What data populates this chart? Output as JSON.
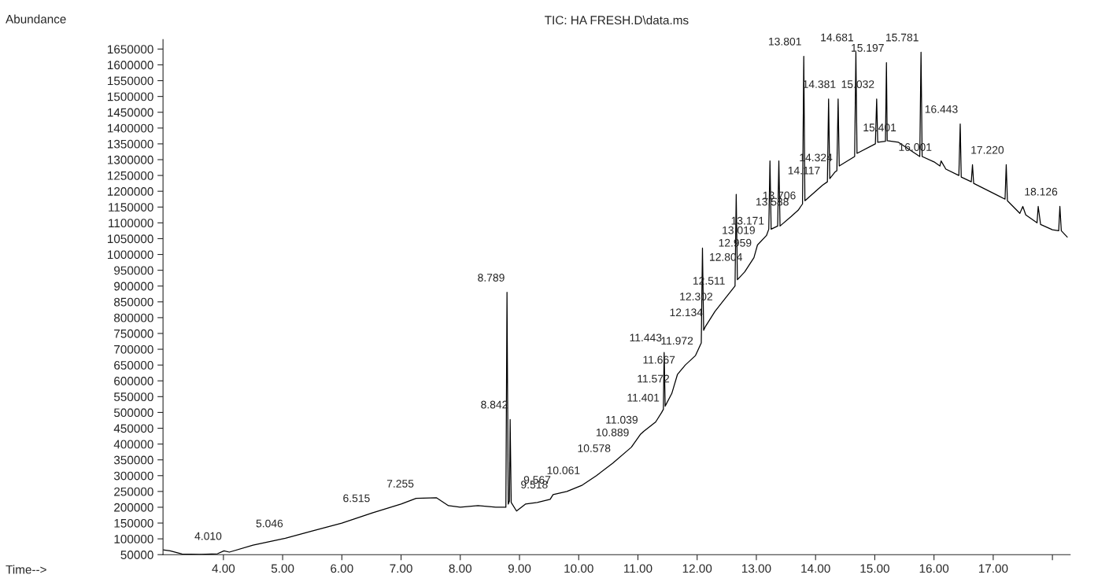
{
  "chart_data": {
    "type": "line",
    "title": "TIC: HA FRESH.D\\data.ms",
    "ylabel": "Abundance",
    "series": [
      {
        "color": "#000000",
        "x": [
          2.98,
          3.1,
          3.3,
          3.6,
          3.9,
          4.01,
          4.1,
          4.5,
          5.046,
          5.5,
          6.0,
          6.515,
          7.0,
          7.255,
          7.6,
          7.8,
          8.0,
          8.3,
          8.6,
          8.77,
          8.789,
          8.81,
          8.83,
          8.842,
          8.86,
          8.95,
          9.1,
          9.3,
          9.518,
          9.567,
          9.8,
          10.061,
          10.3,
          10.578,
          10.889,
          11.039,
          11.097,
          11.3,
          11.401,
          11.43,
          11.443,
          11.46,
          11.572,
          11.667,
          11.8,
          11.972,
          12.07,
          12.09,
          12.11,
          12.134,
          12.302,
          12.511,
          12.64,
          12.66,
          12.68,
          12.804,
          12.959,
          13.019,
          13.171,
          13.21,
          13.23,
          13.25,
          13.36,
          13.38,
          13.4,
          13.588,
          13.706,
          13.78,
          13.801,
          13.82,
          14.117,
          14.2,
          14.22,
          14.24,
          14.324,
          14.36,
          14.381,
          14.4,
          14.66,
          14.681,
          14.7,
          15.01,
          15.032,
          15.05,
          15.18,
          15.197,
          15.21,
          15.401,
          15.76,
          15.781,
          15.8,
          16.001,
          16.1,
          16.12,
          16.2,
          16.42,
          16.443,
          16.46,
          16.63,
          16.65,
          16.67,
          17.0,
          17.2,
          17.22,
          17.24,
          17.45,
          17.5,
          17.55,
          17.74,
          17.76,
          17.8,
          18.0,
          18.106,
          18.126,
          18.15,
          18.25
        ],
        "values": [
          65000,
          62000,
          52000,
          51000,
          53000,
          62000,
          58000,
          80000,
          102000,
          125000,
          150000,
          182000,
          210000,
          228000,
          230000,
          205000,
          200000,
          205000,
          200000,
          200000,
          880000,
          210000,
          220000,
          478000,
          215000,
          188000,
          210000,
          215000,
          225000,
          240000,
          250000,
          270000,
          300000,
          340000,
          390000,
          430000,
          440000,
          470000,
          500000,
          510000,
          690000,
          520000,
          560000,
          620000,
          650000,
          680000,
          720000,
          1020000,
          760000,
          770000,
          820000,
          870000,
          900000,
          1190000,
          920000,
          945000,
          990000,
          1030000,
          1060000,
          1080000,
          1296000,
          1080000,
          1090000,
          1296000,
          1090000,
          1120000,
          1140000,
          1160000,
          1627000,
          1170000,
          1219000,
          1230000,
          1492000,
          1240000,
          1260000,
          1265000,
          1492000,
          1280000,
          1310000,
          1640000,
          1320000,
          1350000,
          1492000,
          1355000,
          1358000,
          1607000,
          1360000,
          1355000,
          1310000,
          1640000,
          1310000,
          1293000,
          1280000,
          1296000,
          1270000,
          1250000,
          1413000,
          1245000,
          1230000,
          1284000,
          1225000,
          1194000,
          1175000,
          1284000,
          1170000,
          1130000,
          1152000,
          1125000,
          1100000,
          1152000,
          1095000,
          1078000,
          1075000,
          1152000,
          1075000,
          1055000
        ]
      }
    ],
    "xlim": [
      2.98,
      18.3
    ],
    "xticks": [
      {
        "value": 4,
        "label": "4.00"
      },
      {
        "value": 5,
        "label": "5.00"
      },
      {
        "value": 6,
        "label": "6.00"
      },
      {
        "value": 7,
        "label": "7.00"
      },
      {
        "value": 8,
        "label": "8.00"
      },
      {
        "value": 9,
        "label": "9.00"
      },
      {
        "value": 10,
        "label": "10.00"
      },
      {
        "value": 11,
        "label": "11.00"
      },
      {
        "value": 12,
        "label": "12.00"
      },
      {
        "value": 13,
        "label": "13.00"
      },
      {
        "value": 14,
        "label": "14.00"
      },
      {
        "value": 15,
        "label": "15.00"
      },
      {
        "value": 16,
        "label": "16.00"
      },
      {
        "value": 17,
        "label": "17.00"
      },
      {
        "value": 18,
        "label": null
      }
    ],
    "ylim": [
      50000,
      1680000
    ],
    "yticks": [
      50000,
      100000,
      150000,
      200000,
      250000,
      300000,
      350000,
      400000,
      450000,
      500000,
      550000,
      600000,
      650000,
      700000,
      750000,
      800000,
      850000,
      900000,
      950000,
      1000000,
      1050000,
      1100000,
      1150000,
      1200000,
      1250000,
      1300000,
      1350000,
      1400000,
      1450000,
      1500000,
      1550000,
      1600000,
      1650000
    ],
    "grid": false,
    "legend": false,
    "marker": "none",
    "line_style": "solid",
    "annotations": [
      "Time-->",
      {
        "text": "4.010",
        "x": 4.01,
        "y": 62000
      },
      {
        "text": "5.046",
        "x": 5.046,
        "y": 102000
      },
      {
        "text": "6.515",
        "x": 6.515,
        "y": 182000
      },
      {
        "text": "7.255",
        "x": 7.255,
        "y": 228000
      },
      {
        "text": "8.789",
        "x": 8.789,
        "y": 880000
      },
      {
        "text": "8.842",
        "x": 8.842,
        "y": 478000
      },
      {
        "text": "9.518",
        "x": 9.518,
        "y": 225000
      },
      {
        "text": "9.567",
        "x": 9.567,
        "y": 240000
      },
      {
        "text": "10.061",
        "x": 10.061,
        "y": 270000
      },
      {
        "text": "10.578",
        "x": 10.578,
        "y": 340000
      },
      {
        "text": "10.889",
        "x": 10.889,
        "y": 390000
      },
      {
        "text": "11.039",
        "x": 11.039,
        "y": 430000
      },
      {
        "text": "11.401",
        "x": 11.401,
        "y": 500000
      },
      {
        "text": "11.443",
        "x": 11.443,
        "y": 690000
      },
      {
        "text": "11.572",
        "x": 11.572,
        "y": 560000
      },
      {
        "text": "11.667",
        "x": 11.667,
        "y": 620000
      },
      {
        "text": "11.972",
        "x": 11.972,
        "y": 680000
      },
      {
        "text": "12.134",
        "x": 12.134,
        "y": 770000
      },
      {
        "text": "12.302",
        "x": 12.302,
        "y": 820000
      },
      {
        "text": "12.511",
        "x": 12.511,
        "y": 870000
      },
      {
        "text": "12.804",
        "x": 12.804,
        "y": 945000
      },
      {
        "text": "12.959",
        "x": 12.959,
        "y": 990000
      },
      {
        "text": "13.019",
        "x": 13.019,
        "y": 1030000
      },
      {
        "text": "13.171",
        "x": 13.171,
        "y": 1060000
      },
      {
        "text": "13.588",
        "x": 13.588,
        "y": 1120000
      },
      {
        "text": "13.706",
        "x": 13.706,
        "y": 1140000
      },
      {
        "text": "13.801",
        "x": 13.801,
        "y": 1627000
      },
      {
        "text": "14.117",
        "x": 14.117,
        "y": 1219000
      },
      {
        "text": "14.324",
        "x": 14.324,
        "y": 1260000
      },
      {
        "text": "14.381",
        "x": 14.381,
        "y": 1492000
      },
      {
        "text": "14.681",
        "x": 14.681,
        "y": 1640000
      },
      {
        "text": "15.032",
        "x": 15.032,
        "y": 1492000
      },
      {
        "text": "15.197",
        "x": 15.197,
        "y": 1607000
      },
      {
        "text": "15.401",
        "x": 15.401,
        "y": 1355000
      },
      {
        "text": "15.781",
        "x": 15.781,
        "y": 1640000
      },
      {
        "text": "16.001",
        "x": 16.001,
        "y": 1293000
      },
      {
        "text": "16.443",
        "x": 16.443,
        "y": 1413000
      },
      {
        "text": "17.220",
        "x": 17.22,
        "y": 1284000
      },
      {
        "text": "18.126",
        "x": 18.126,
        "y": 1152000
      }
    ]
  }
}
